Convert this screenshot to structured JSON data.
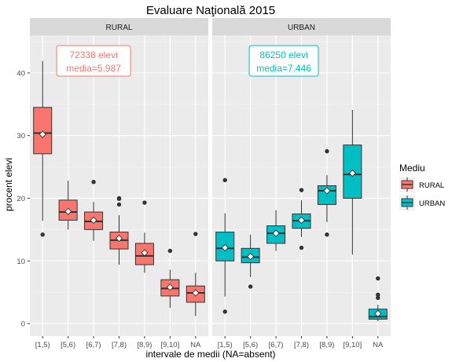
{
  "chart_data": {
    "type": "boxplot",
    "title": "Evaluare Naţională 2015",
    "xlabel": "intervale de medii (NA=absent)",
    "ylabel": "procent elevi",
    "ylim": [
      -2,
      46
    ],
    "yticks": [
      0,
      10,
      20,
      30,
      40
    ],
    "grid": true,
    "legend": {
      "title": "Mediu",
      "position": "right",
      "items": [
        {
          "label": "RURAL",
          "color": "#F8766D"
        },
        {
          "label": "URBAN",
          "color": "#00BFC4"
        }
      ]
    },
    "categories": [
      "[1,5)",
      "[5,6)",
      "[6,7)",
      "[7,8)",
      "[8,9)",
      "[9,10]",
      "NA"
    ],
    "panels": [
      {
        "name": "RURAL",
        "color": "#F8766D",
        "annotation": {
          "line1": "72338 elevi",
          "line2": "media=5.987"
        },
        "boxes": [
          {
            "category": "[1,5)",
            "lower": 16.4,
            "q1": 27.1,
            "median": 30.4,
            "q3": 34.5,
            "upper": 41.9,
            "mean": 30.2,
            "outliers": [
              14.2
            ]
          },
          {
            "category": "[5,6)",
            "lower": 15.0,
            "q1": 16.5,
            "median": 17.8,
            "q3": 19.7,
            "upper": 22.8,
            "mean": 17.9,
            "outliers": []
          },
          {
            "category": "[6,7)",
            "lower": 13.2,
            "q1": 15.0,
            "median": 16.3,
            "q3": 17.8,
            "upper": 19.4,
            "mean": 16.5,
            "outliers": [
              22.6
            ]
          },
          {
            "category": "[7,8)",
            "lower": 9.4,
            "q1": 11.9,
            "median": 13.3,
            "q3": 14.6,
            "upper": 17.3,
            "mean": 13.6,
            "outliers": [
              19.0,
              19.9,
              20.0
            ]
          },
          {
            "category": "[8,9)",
            "lower": 8.1,
            "q1": 9.4,
            "median": 10.8,
            "q3": 12.8,
            "upper": 14.5,
            "mean": 11.3,
            "outliers": [
              19.3
            ]
          },
          {
            "category": "[9,10]",
            "lower": 2.5,
            "q1": 4.4,
            "median": 5.6,
            "q3": 7.0,
            "upper": 8.6,
            "mean": 5.8,
            "outliers": [
              11.6
            ]
          },
          {
            "category": "NA",
            "lower": 1.2,
            "q1": 3.4,
            "median": 4.9,
            "q3": 6.0,
            "upper": 8.1,
            "mean": 4.9,
            "outliers": [
              14.3
            ]
          }
        ]
      },
      {
        "name": "URBAN",
        "color": "#00BFC4",
        "annotation": {
          "line1": "86250 elevi",
          "line2": "media=7.446"
        },
        "boxes": [
          {
            "category": "[1,5)",
            "lower": 4.3,
            "q1": 10.0,
            "median": 12.0,
            "q3": 14.6,
            "upper": 17.6,
            "mean": 12.1,
            "outliers": [
              1.9,
              22.9
            ]
          },
          {
            "category": "[5,6)",
            "lower": 7.4,
            "q1": 9.7,
            "median": 10.6,
            "q3": 12.0,
            "upper": 14.2,
            "mean": 10.7,
            "outliers": [
              5.9
            ]
          },
          {
            "category": "[6,7)",
            "lower": 11.6,
            "q1": 12.8,
            "median": 14.4,
            "q3": 15.6,
            "upper": 18.1,
            "mean": 14.4,
            "outliers": []
          },
          {
            "category": "[7,8)",
            "lower": 13.8,
            "q1": 15.2,
            "median": 16.4,
            "q3": 17.5,
            "upper": 19.7,
            "mean": 16.5,
            "outliers": [
              12.1,
              21.3
            ]
          },
          {
            "category": "[8,9)",
            "lower": 16.2,
            "q1": 19.0,
            "median": 21.2,
            "q3": 22.0,
            "upper": 23.7,
            "mean": 21.2,
            "outliers": [
              14.2,
              27.5
            ]
          },
          {
            "category": "[9,10]",
            "lower": 11.0,
            "q1": 20.0,
            "median": 23.8,
            "q3": 28.5,
            "upper": 34.1,
            "mean": 24.0,
            "outliers": []
          },
          {
            "category": "NA",
            "lower": 0.4,
            "q1": 0.7,
            "median": 1.1,
            "q3": 2.3,
            "upper": 3.0,
            "mean": 1.6,
            "outliers": [
              4.1,
              4.6,
              7.2
            ]
          }
        ]
      }
    ]
  }
}
